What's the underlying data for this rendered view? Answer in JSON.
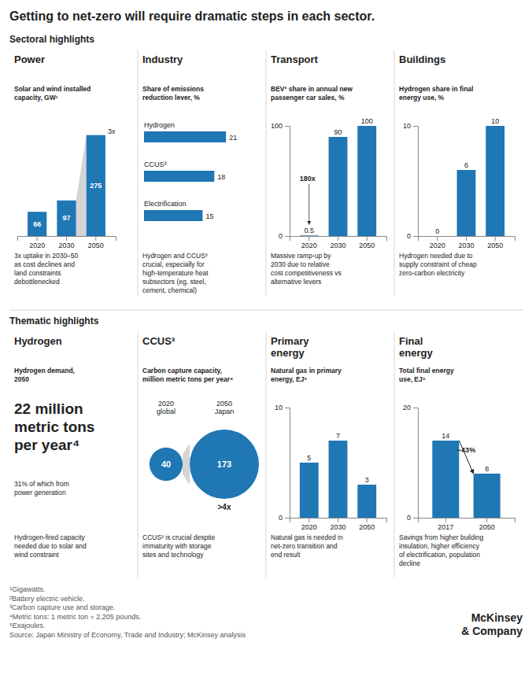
{
  "title": "Getting to net-zero will require dramatic steps in each sector.",
  "sections": [
    "Sectoral highlights",
    "Thematic highlights"
  ],
  "chart_data": [
    {
      "type": "bar",
      "title": "Power",
      "subtitle": "Solar and wind installed\ncapacity, GW¹",
      "categories": [
        "2020",
        "2030",
        "2050"
      ],
      "values": [
        66,
        97,
        275
      ],
      "ylim": [
        0,
        300
      ],
      "data_labels": true,
      "tick_labels": "x",
      "annotations": [
        "3x"
      ],
      "note": "3x uptake in 2030–50\nas cost declines and\nland constraints\ndebottlenecked"
    },
    {
      "type": "bar",
      "orientation": "horizontal",
      "title": "Industry",
      "subtitle": "Share of emissions\nreduction lever, %",
      "categories": [
        "Hydrogen",
        "CCUS³",
        "Electrification"
      ],
      "values": [
        21,
        18,
        15
      ],
      "xlim": [
        0,
        25
      ],
      "data_labels": true,
      "tick_labels": "y",
      "note": "Hydrogen and CCUS³\ncrucial, especially for\nhigh-temperature heat\nsubsectors (eg, steel,\ncement, chemical)"
    },
    {
      "type": "bar",
      "title": "Transport",
      "subtitle": "BEV² share in annual new\npassenger car sales, %",
      "categories": [
        "2020",
        "2030",
        "2050"
      ],
      "values": [
        0.5,
        90,
        100
      ],
      "ylim": [
        0,
        100
      ],
      "yticks": [
        0,
        100
      ],
      "data_labels": true,
      "annotations": [
        "180x"
      ],
      "note": "Massive ramp-up by\n2030 due to relative\ncost competitiveness vs\nalternative levers"
    },
    {
      "type": "bar",
      "title": "Buildings",
      "subtitle": "Hydrogen share in final\nenergy use, %",
      "categories": [
        "2020",
        "2030",
        "2050"
      ],
      "values": [
        0,
        6,
        10
      ],
      "ylim": [
        0,
        10
      ],
      "yticks": [
        0,
        10
      ],
      "data_labels": true,
      "note": "Hydrogen needed due to\nsupply constraint of cheap\nzero-carbon electricity"
    },
    {
      "type": "text",
      "title": "Hydrogen",
      "subtitle": "Hydrogen demand,\n2050",
      "annotations": [
        "22 million\nmetric tons\nper year⁴",
        "31% of which from\npower generation"
      ],
      "note": "Hydrogen-fired capacity\nneeded due to solar and\nwind constraint"
    },
    {
      "type": "bubble",
      "title": "CCUS³",
      "subtitle": "Carbon capture capacity,\nmillion metric tons per year⁴",
      "categories": [
        "2020\nglobal",
        "2050\nJapan"
      ],
      "values": [
        40,
        173
      ],
      "data_labels": true,
      "annotations": [
        ">4x"
      ],
      "note": "CCUS³ is crucial despite\nimmaturity with storage\nsites and technology"
    },
    {
      "type": "bar",
      "title": "Primary\nenergy",
      "subtitle": "Natural gas in primary\nenergy, EJ⁵",
      "categories": [
        "2020",
        "2030",
        "2050"
      ],
      "values": [
        5,
        7,
        3
      ],
      "ylim": [
        0,
        10
      ],
      "yticks": [
        0,
        10
      ],
      "data_labels": true,
      "note": "Natural gas is needed in\nnet-zero transition and\nend result"
    },
    {
      "type": "bar",
      "title": "Final\nenergy",
      "subtitle": "Total final energy\nuse, EJ⁵",
      "categories": [
        "2017",
        "2050"
      ],
      "values": [
        14,
        8
      ],
      "ylim": [
        0,
        20
      ],
      "yticks": [
        0,
        20
      ],
      "data_labels": true,
      "annotations": [
        "−43%"
      ],
      "note": "Savings from higher building\ninsulation, higher efficiency\nof electrification, population\ndecline"
    }
  ],
  "footnotes": "¹Gigawatts.\n²Battery electric vehicle.\n³Carbon capture use and storage.\n⁴Metric tons: 1 metric ton = 2,205 pounds.\n⁵Exajoules.\nSource: Japan Ministry of Economy, Trade and Industry; McKinsey analysis",
  "logo": [
    "McKinsey",
    "& Company"
  ]
}
